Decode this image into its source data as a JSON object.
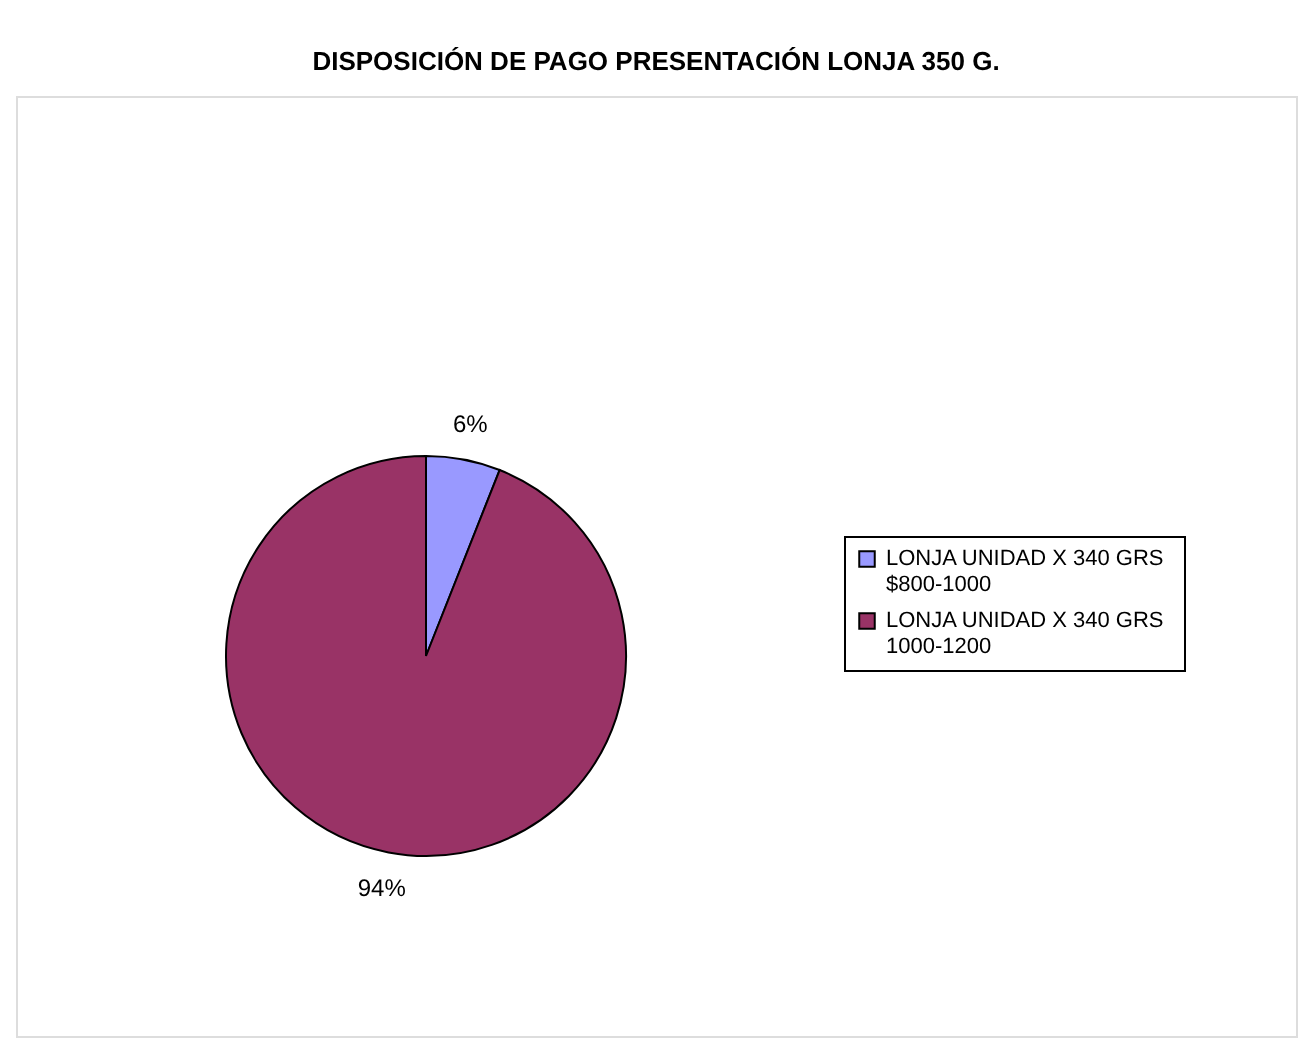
{
  "chart_data": {
    "type": "pie",
    "title": "DISPOSICIÓN DE PAGO PRESENTACIÓN LONJA 350 G.",
    "categories": [
      "LONJA  UNIDAD X 340 GRS $800-1000",
      "LONJA  UNIDAD X 340 GRS 1000-1200"
    ],
    "values": [
      6,
      94
    ],
    "colors": [
      "#9999ff",
      "#993366"
    ],
    "value_labels": [
      "6%",
      "94%"
    ],
    "legend": "right"
  }
}
